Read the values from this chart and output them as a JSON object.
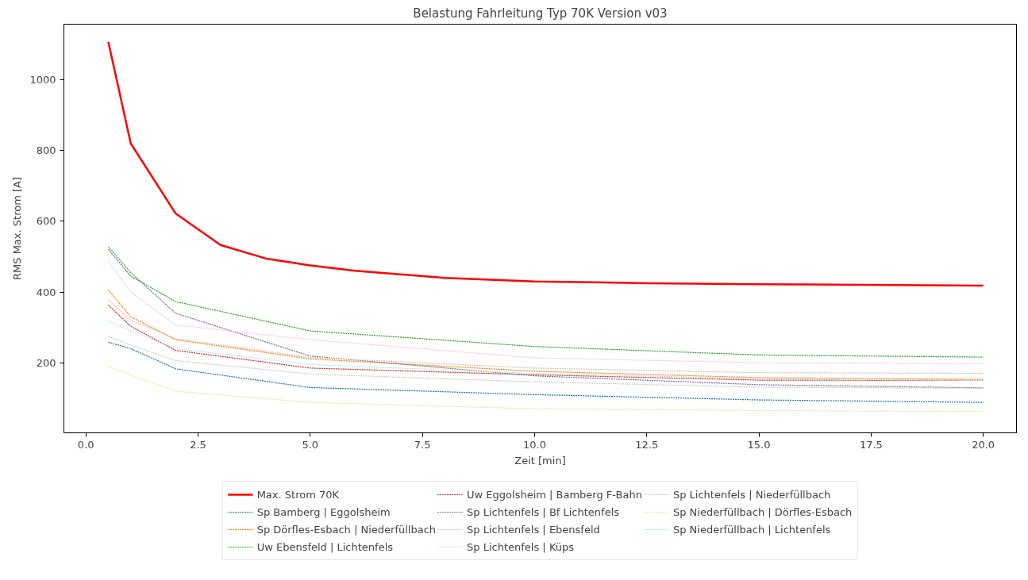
{
  "chart_data": {
    "type": "line",
    "title": "Belastung Fahrleitung Typ 70K Version v03",
    "xlabel": "Zeit [min]",
    "ylabel": "RMS Max. Strom [A]",
    "x": [
      0.5,
      1,
      2,
      5,
      10,
      15,
      20
    ],
    "xlim": [
      -0.49,
      20.74
    ],
    "xticks": [
      {
        "value": 0,
        "label": "0.0"
      },
      {
        "value": 2.5,
        "label": "2.5"
      },
      {
        "value": 5,
        "label": "5.0"
      },
      {
        "value": 7.5,
        "label": "7.5"
      },
      {
        "value": 10,
        "label": "10.0"
      },
      {
        "value": 12.5,
        "label": "12.5"
      },
      {
        "value": 15,
        "label": "15.0"
      },
      {
        "value": 17.5,
        "label": "17.5"
      },
      {
        "value": 20,
        "label": "20.0"
      }
    ],
    "ylim": [
      2,
      1157
    ],
    "yticks": [
      200,
      400,
      600,
      800,
      1000
    ],
    "grid": false,
    "legend": "bottom",
    "line_style": "dashed",
    "marker": "none",
    "series": [
      {
        "name": "Max. Strom 70K",
        "color": "#ff0000",
        "line_style": "solid",
        "x": [
          0.5,
          1,
          2,
          3,
          4,
          5,
          6,
          7,
          8,
          10,
          12.5,
          15,
          20
        ],
        "values": [
          1107,
          820,
          622,
          533,
          495,
          475,
          460,
          450,
          440,
          430,
          425,
          422,
          418
        ]
      },
      {
        "name": "Sp Bamberg | Eggolsheim",
        "color": "#1f77b4",
        "values": [
          258,
          240,
          183,
          130,
          110,
          95,
          88
        ]
      },
      {
        "name": "Sp Dörfles-Esbach | Niederfüllbach",
        "color": "#ff7f0e",
        "values": [
          406,
          330,
          265,
          211,
          176,
          158,
          153
        ]
      },
      {
        "name": "Uw Ebensfeld | Lichtenfels",
        "color": "#2ca02c",
        "values": [
          521,
          445,
          373,
          290,
          246,
          222,
          216
        ]
      },
      {
        "name": "Uw Eggolsheim | Bamberg F-Bahn",
        "color": "#d62728",
        "values": [
          363,
          303,
          235,
          185,
          166,
          151,
          150
        ]
      },
      {
        "name": "Sp Lichtenfels | Bf Lichtenfels",
        "color": "#7f6f8f",
        "values": [
          529,
          455,
          340,
          219,
          163,
          138,
          129
        ]
      },
      {
        "name": "Sp Lichtenfels | Ebensfeld",
        "color": "#d8c2bc",
        "values": [
          378,
          320,
          268,
          215,
          185,
          172,
          170
        ]
      },
      {
        "name": "Sp Lichtenfels | Küps",
        "color": "#f7c6e4",
        "values": [
          486,
          400,
          307,
          265,
          214,
          200,
          198
        ]
      },
      {
        "name": "Sp Lichtenfels | Niederfüllbach",
        "color": "#cccccc",
        "values": [
          275,
          250,
          206,
          168,
          146,
          131,
          128
        ]
      },
      {
        "name": "Sp Niederfüllbach | Dörfles-Esbach",
        "color": "#e8e8a0",
        "values": [
          190,
          165,
          120,
          88,
          70,
          65,
          62
        ]
      },
      {
        "name": "Sp Niederfüllbach | Lichtenfels",
        "color": "#b0e8f0",
        "values": [
          318,
          290,
          240,
          195,
          170,
          155,
          150
        ]
      }
    ]
  }
}
